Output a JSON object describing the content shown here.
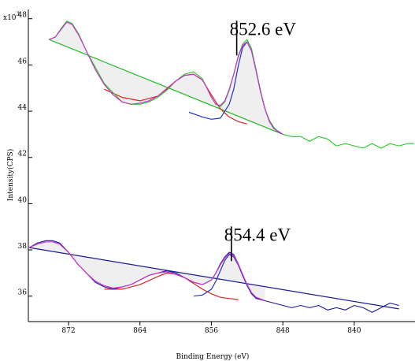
{
  "chart_data": {
    "type": "line",
    "xlabel": "Binding Energy (eV)",
    "ylabel": "Intensity(CPS)",
    "y_multiplier": "x10",
    "y_multiplier_exp": "3",
    "xlim": [
      876.5,
      833.2
    ],
    "ylim": [
      34.9,
      48.4
    ],
    "x_reversed": true,
    "x_ticks": [
      872,
      864,
      856,
      848,
      840
    ],
    "y_ticks": [
      36,
      38,
      40,
      42,
      44,
      46,
      48
    ],
    "grid": false,
    "annotations": [
      {
        "text": "852.6 eV",
        "x": 852.9,
        "y": 47.3
      },
      {
        "text": "854.4 eV",
        "x": 853.5,
        "y": 38.4
      }
    ],
    "spectra": [
      {
        "raw_color": "#22cc22",
        "fit_color": "#cc33cc",
        "peak_colors": [
          "#dd2222",
          "#2233cc"
        ],
        "background_color": "#22bb22",
        "raw": {
          "x": [
            874.2,
            873.5,
            872.8,
            872.2,
            871.6,
            870.8,
            870.0,
            869.0,
            868.0,
            867.0,
            866.0,
            865.0,
            864.0,
            863.0,
            862.0,
            861.0,
            860.0,
            859.0,
            858.0,
            857.0,
            856.5,
            856.0,
            855.5,
            855.0,
            854.5,
            854.0,
            853.5,
            853.0,
            852.5,
            852.0,
            851.5,
            851.0,
            850.5,
            850.0,
            849.5,
            849.0,
            848.5,
            848.0,
            847.0,
            846.0,
            845.0,
            844.0,
            843.0,
            842.0,
            841.0,
            840.0,
            839.0,
            838.0,
            837.0,
            836.0,
            835.0,
            834.0,
            833.3
          ],
          "y": [
            47.1,
            47.2,
            47.6,
            47.9,
            47.8,
            47.3,
            46.6,
            45.9,
            45.2,
            44.8,
            44.4,
            44.3,
            44.3,
            44.4,
            44.6,
            44.9,
            45.3,
            45.6,
            45.7,
            45.4,
            45.0,
            44.6,
            44.3,
            44.2,
            44.4,
            44.9,
            45.6,
            46.4,
            46.9,
            47.1,
            46.7,
            45.8,
            44.9,
            44.1,
            43.6,
            43.3,
            43.1,
            43.0,
            42.9,
            42.9,
            42.7,
            42.9,
            42.8,
            42.5,
            42.6,
            42.5,
            42.4,
            42.6,
            42.4,
            42.6,
            42.5,
            42.6,
            42.6
          ]
        },
        "fit": {
          "x": [
            874.2,
            873.5,
            872.8,
            872.2,
            871.6,
            870.8,
            870.0,
            869.0,
            868.0,
            867.0,
            866.0,
            865.0,
            864.0,
            863.0,
            862.0,
            861.0,
            860.0,
            859.0,
            858.0,
            857.0,
            856.5,
            856.0,
            855.5,
            855.0,
            854.5,
            854.0,
            853.5,
            853.0,
            852.5,
            852.0,
            851.5,
            851.0,
            850.5,
            850.0,
            849.5,
            849.0,
            848.5,
            848.0
          ],
          "y": [
            47.1,
            47.2,
            47.55,
            47.85,
            47.75,
            47.25,
            46.6,
            45.8,
            45.15,
            44.7,
            44.4,
            44.3,
            44.35,
            44.45,
            44.65,
            44.95,
            45.3,
            45.55,
            45.6,
            45.35,
            45.0,
            44.6,
            44.3,
            44.25,
            44.45,
            44.95,
            45.6,
            46.35,
            46.85,
            47.0,
            46.6,
            45.75,
            44.85,
            44.1,
            43.55,
            43.25,
            43.1,
            43.0
          ]
        },
        "background": {
          "x": [
            874.2,
            848.0
          ],
          "y": [
            47.1,
            43.0
          ]
        },
        "peaks": [
          {
            "x": [
              868.0,
              866.0,
              864.0,
              862.0,
              860.0,
              859.0,
              858.0,
              857.0,
              856.0,
              855.0,
              854.0,
              853.0,
              852.0
            ],
            "y": [
              44.95,
              44.6,
              44.45,
              44.65,
              45.3,
              45.55,
              45.6,
              45.35,
              44.7,
              44.1,
              43.75,
              43.55,
              43.45
            ]
          },
          {
            "x": [
              858.5,
              857.0,
              856.0,
              855.0,
              854.0,
              853.5,
              853.0,
              852.5,
              852.0,
              851.5,
              851.0,
              850.5,
              850.0,
              849.5,
              849.0,
              848.0
            ],
            "y": [
              43.95,
              43.75,
              43.65,
              43.7,
              44.3,
              44.95,
              45.95,
              46.75,
              47.0,
              46.6,
              45.75,
              44.85,
              44.1,
              43.55,
              43.25,
              43.0
            ]
          }
        ]
      },
      {
        "raw_color": "#1a1a99",
        "fit_color": "#cc33cc",
        "peak_colors": [
          "#dd2222",
          "#2233cc"
        ],
        "background_color": "#1a1a99",
        "raw": {
          "x": [
            876.4,
            875.5,
            874.5,
            873.8,
            873.0,
            872.0,
            871.0,
            870.0,
            869.0,
            868.0,
            867.0,
            866.0,
            865.0,
            864.0,
            863.0,
            862.0,
            861.0,
            860.0,
            859.0,
            858.0,
            857.0,
            856.0,
            855.5,
            855.0,
            854.5,
            854.0,
            853.5,
            853.0,
            852.5,
            852.0,
            851.5,
            851.0,
            850.0,
            849.0,
            848.0,
            847.0,
            846.0,
            845.0,
            844.0,
            843.0,
            842.0,
            841.0,
            840.0,
            839.0,
            838.0,
            837.0,
            836.0,
            835.0
          ],
          "y": [
            38.1,
            38.3,
            38.4,
            38.4,
            38.3,
            37.9,
            37.4,
            37.0,
            36.6,
            36.4,
            36.3,
            36.4,
            36.5,
            36.7,
            36.9,
            37.0,
            37.1,
            37.0,
            36.8,
            36.6,
            36.5,
            36.7,
            37.0,
            37.4,
            37.7,
            37.9,
            37.8,
            37.4,
            36.9,
            36.5,
            36.1,
            35.9,
            35.8,
            35.7,
            35.6,
            35.5,
            35.6,
            35.5,
            35.6,
            35.4,
            35.5,
            35.4,
            35.6,
            35.5,
            35.3,
            35.5,
            35.7,
            35.6
          ]
        },
        "fit": {
          "x": [
            876.4,
            875.5,
            874.5,
            873.8,
            873.0,
            872.0,
            871.0,
            870.0,
            869.0,
            868.0,
            867.0,
            866.0,
            865.0,
            864.0,
            863.0,
            862.0,
            861.0,
            860.0,
            859.0,
            858.0,
            857.0,
            856.0,
            855.5,
            855.0,
            854.5,
            854.0,
            853.5,
            853.0,
            852.5,
            852.0,
            851.5,
            851.0,
            850.0
          ],
          "y": [
            38.1,
            38.25,
            38.35,
            38.35,
            38.25,
            37.9,
            37.4,
            37.0,
            36.65,
            36.45,
            36.35,
            36.4,
            36.5,
            36.7,
            36.9,
            37.0,
            37.05,
            36.95,
            36.8,
            36.6,
            36.5,
            36.7,
            37.0,
            37.35,
            37.65,
            37.85,
            37.75,
            37.4,
            36.95,
            36.5,
            36.15,
            35.95,
            35.8
          ]
        },
        "background": {
          "x": [
            876.4,
            835.0
          ],
          "y": [
            38.1,
            35.45
          ]
        },
        "peaks": [
          {
            "x": [
              868.0,
              866.0,
              864.0,
              862.0,
              861.0,
              860.0,
              859.0,
              858.0,
              857.0,
              856.0,
              855.0,
              854.0,
              853.0
            ],
            "y": [
              36.3,
              36.3,
              36.5,
              36.85,
              37.0,
              36.95,
              36.8,
              36.55,
              36.3,
              36.1,
              35.95,
              35.9,
              35.85
            ]
          },
          {
            "x": [
              858.0,
              857.0,
              856.0,
              855.5,
              855.0,
              854.5,
              854.0,
              853.5,
              853.0,
              852.5,
              852.0,
              851.5,
              851.0,
              850.0
            ],
            "y": [
              36.0,
              36.05,
              36.3,
              36.65,
              37.1,
              37.55,
              37.8,
              37.7,
              37.35,
              36.9,
              36.45,
              36.1,
              35.95,
              35.8
            ]
          }
        ]
      }
    ]
  }
}
